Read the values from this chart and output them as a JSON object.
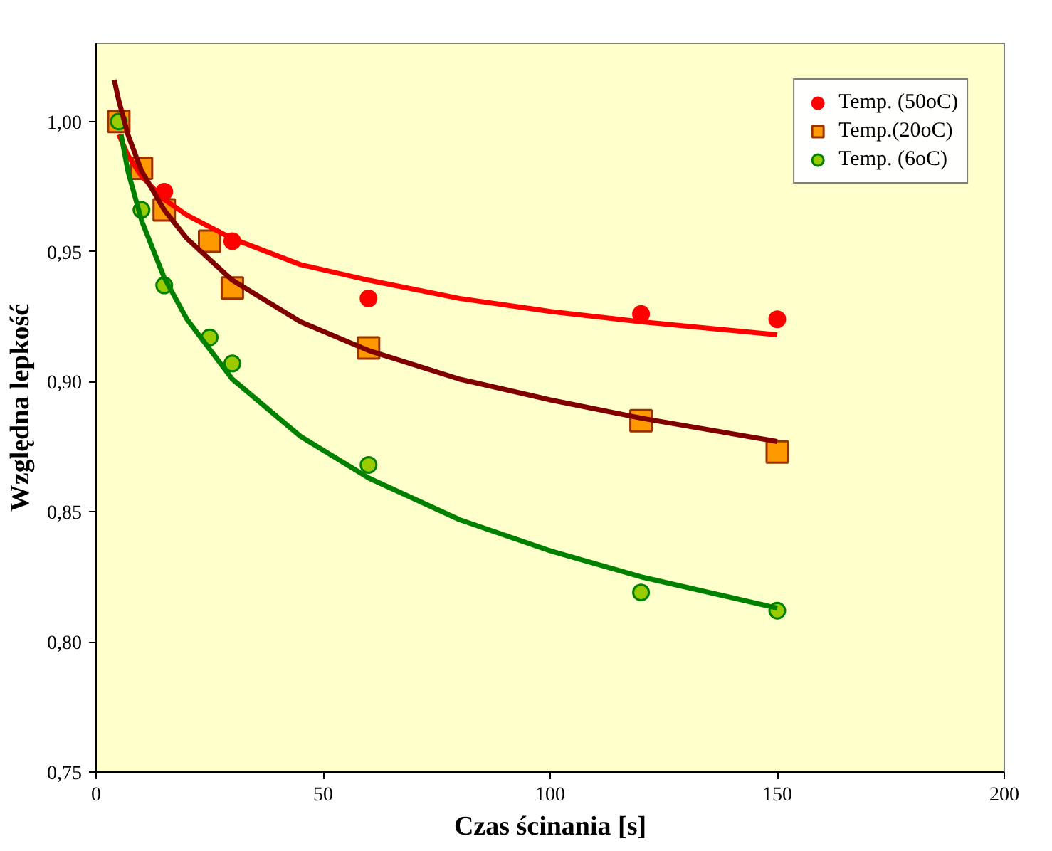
{
  "chart_data": {
    "type": "scatter",
    "xlabel": "Czas ścinania [s]",
    "ylabel": "Względna lepkość",
    "xlim": [
      0,
      200
    ],
    "xticks": [
      0,
      50,
      100,
      150,
      200
    ],
    "ylim": [
      0.75,
      1.03
    ],
    "yticks": [
      {
        "value": 0.75,
        "label": "0,75"
      },
      {
        "value": 0.8,
        "label": "0,80"
      },
      {
        "value": 0.85,
        "label": "0,85"
      },
      {
        "value": 0.9,
        "label": "0,90"
      },
      {
        "value": 0.95,
        "label": "0,95"
      },
      {
        "value": 1.0,
        "label": "1,00"
      }
    ],
    "grid": false,
    "legend": "top right",
    "series": [
      {
        "name": "Temp. (50oC)",
        "marker": "circle",
        "color": "#ff0000",
        "x": [
          15,
          30,
          60,
          120,
          150
        ],
        "values": [
          0.973,
          0.954,
          0.932,
          0.926,
          0.924
        ]
      },
      {
        "name": "Temp.(20oC)",
        "marker": "square",
        "color": "#ff9900",
        "x": [
          5,
          10,
          15,
          25,
          30,
          60,
          120,
          150
        ],
        "values": [
          1.0,
          0.982,
          0.966,
          0.954,
          0.936,
          0.913,
          0.885,
          0.873
        ]
      },
      {
        "name": "Temp. (6oC)",
        "marker": "circle",
        "color": "#99cc00",
        "x": [
          5,
          10,
          15,
          25,
          30,
          60,
          120,
          150
        ],
        "values": [
          1.0,
          0.966,
          0.937,
          0.917,
          0.907,
          0.868,
          0.819,
          0.812
        ]
      },
      {
        "type": "line",
        "color": "#ff0000",
        "x": [
          5,
          7,
          10,
          15,
          20,
          30,
          45,
          60,
          80,
          100,
          120,
          150
        ],
        "values": [
          0.995,
          0.987,
          0.979,
          0.97,
          0.964,
          0.955,
          0.945,
          0.939,
          0.932,
          0.927,
          0.923,
          0.918
        ]
      },
      {
        "type": "line",
        "color": "#800000",
        "x": [
          4,
          5,
          7,
          10,
          15,
          20,
          30,
          45,
          60,
          80,
          100,
          120,
          150
        ],
        "values": [
          1.016,
          1.008,
          0.995,
          0.981,
          0.966,
          0.955,
          0.939,
          0.923,
          0.912,
          0.901,
          0.893,
          0.886,
          0.877
        ]
      },
      {
        "type": "line",
        "color": "#008000",
        "x": [
          5.5,
          7,
          10,
          15,
          20,
          30,
          45,
          60,
          80,
          100,
          120,
          150
        ],
        "values": [
          0.995,
          0.981,
          0.962,
          0.94,
          0.924,
          0.901,
          0.879,
          0.863,
          0.847,
          0.835,
          0.825,
          0.813
        ]
      }
    ]
  }
}
